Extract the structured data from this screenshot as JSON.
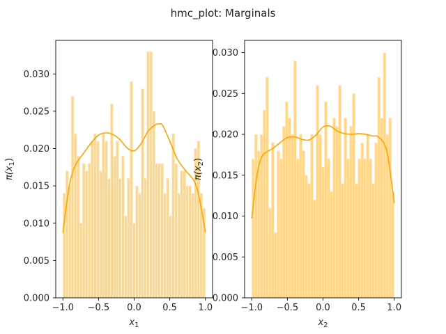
{
  "suptitle": "hmc_plot: Marginals",
  "colors": {
    "bar_fill": "#FFD68A",
    "bar_edge": "#FFF2D6",
    "kde_line": "#FFA500",
    "axes_edge": "#000000",
    "text": "#262626"
  },
  "chart_data": [
    {
      "type": "bar",
      "subtype": "histogram-with-kde",
      "xlabel_base": "x",
      "xlabel_sub": "1",
      "ylabel_pre": "π(x",
      "ylabel_sub": "1",
      "ylabel_post": ")",
      "xlim": [
        -1.1,
        1.1
      ],
      "ylim": [
        0,
        0.0345
      ],
      "xticks": [
        -1.0,
        -0.5,
        0.0,
        0.5,
        1.0
      ],
      "xtick_labels": [
        "−1.0",
        "−0.5",
        "0.0",
        "0.5",
        "1.0"
      ],
      "yticks": [
        0,
        0.005,
        0.01,
        0.015,
        0.02,
        0.025,
        0.03
      ],
      "ytick_labels": [
        "0.000",
        "0.005",
        "0.010",
        "0.015",
        "0.020",
        "0.025",
        "0.030"
      ],
      "grid": false,
      "bin_range": [
        -1.0,
        1.0
      ],
      "bar_values": [
        0.014,
        0.017,
        0.015,
        0.027,
        0.022,
        0.019,
        0.01,
        0.018,
        0.017,
        0.018,
        0.021,
        0.022,
        0.021,
        0.017,
        0.022,
        0.021,
        0.016,
        0.026,
        0.019,
        0.021,
        0.016,
        0.019,
        0.011,
        0.016,
        0.029,
        0.01,
        0.015,
        0.014,
        0.028,
        0.016,
        0.033,
        0.033,
        0.025,
        0.018,
        0.018,
        0.018,
        0.014,
        0.016,
        0.011,
        0.022,
        0.018,
        0.014,
        0.017,
        0.017,
        0.015,
        0.015,
        0.014,
        0.02,
        0.021,
        0.014,
        0.012
      ],
      "kde": {
        "x": [
          -1.0,
          -0.95,
          -0.9,
          -0.85,
          -0.8,
          -0.7,
          -0.6,
          -0.5,
          -0.4,
          -0.3,
          -0.2,
          -0.1,
          0.0,
          0.1,
          0.2,
          0.3,
          0.35,
          0.4,
          0.5,
          0.6,
          0.7,
          0.8,
          0.85,
          0.9,
          0.95,
          1.0
        ],
        "y": [
          0.0087,
          0.0125,
          0.0155,
          0.0172,
          0.0182,
          0.0195,
          0.0208,
          0.0218,
          0.0221,
          0.0219,
          0.0212,
          0.0201,
          0.0197,
          0.0207,
          0.0224,
          0.0232,
          0.0233,
          0.0231,
          0.021,
          0.0187,
          0.0173,
          0.0162,
          0.0155,
          0.014,
          0.0115,
          0.0088
        ]
      }
    },
    {
      "type": "bar",
      "subtype": "histogram-with-kde",
      "xlabel_base": "x",
      "xlabel_sub": "2",
      "ylabel_pre": "π(x",
      "ylabel_sub": "2",
      "ylabel_post": ")",
      "xlim": [
        -1.1,
        1.1
      ],
      "ylim": [
        0,
        0.0315
      ],
      "xticks": [
        -1.0,
        -0.5,
        0.0,
        0.5,
        1.0
      ],
      "xtick_labels": [
        "−1.0",
        "−0.5",
        "0.0",
        "0.5",
        "1.0"
      ],
      "yticks": [
        0,
        0.005,
        0.01,
        0.015,
        0.02,
        0.025,
        0.03
      ],
      "ytick_labels": [
        "0.000",
        "0.005",
        "0.010",
        "0.015",
        "0.020",
        "0.025",
        "0.030"
      ],
      "grid": false,
      "bin_range": [
        -1.0,
        1.0
      ],
      "bar_values": [
        0.017,
        0.02,
        0.018,
        0.02,
        0.023,
        0.027,
        0.011,
        0.019,
        0.008,
        0.018,
        0.017,
        0.021,
        0.024,
        0.022,
        0.02,
        0.029,
        0.017,
        0.02,
        0.018,
        0.015,
        0.014,
        0.02,
        0.012,
        0.026,
        0.02,
        0.016,
        0.024,
        0.017,
        0.013,
        0.022,
        0.021,
        0.026,
        0.014,
        0.022,
        0.017,
        0.021,
        0.025,
        0.014,
        0.017,
        0.019,
        0.017,
        0.02,
        0.017,
        0.014,
        0.019,
        0.027,
        0.022,
        0.03,
        0.02,
        0.022,
        0.013
      ],
      "kde": {
        "x": [
          -1.0,
          -0.95,
          -0.9,
          -0.85,
          -0.8,
          -0.7,
          -0.6,
          -0.5,
          -0.4,
          -0.3,
          -0.2,
          -0.1,
          0.0,
          0.1,
          0.2,
          0.3,
          0.4,
          0.5,
          0.6,
          0.7,
          0.75,
          0.8,
          0.85,
          0.9,
          0.95,
          1.0
        ],
        "y": [
          0.0097,
          0.0135,
          0.0162,
          0.0174,
          0.0178,
          0.0183,
          0.019,
          0.0196,
          0.0197,
          0.0194,
          0.0193,
          0.0199,
          0.0209,
          0.021,
          0.0204,
          0.0201,
          0.02,
          0.0201,
          0.02,
          0.0198,
          0.0198,
          0.0195,
          0.019,
          0.0178,
          0.015,
          0.0116
        ]
      }
    }
  ]
}
